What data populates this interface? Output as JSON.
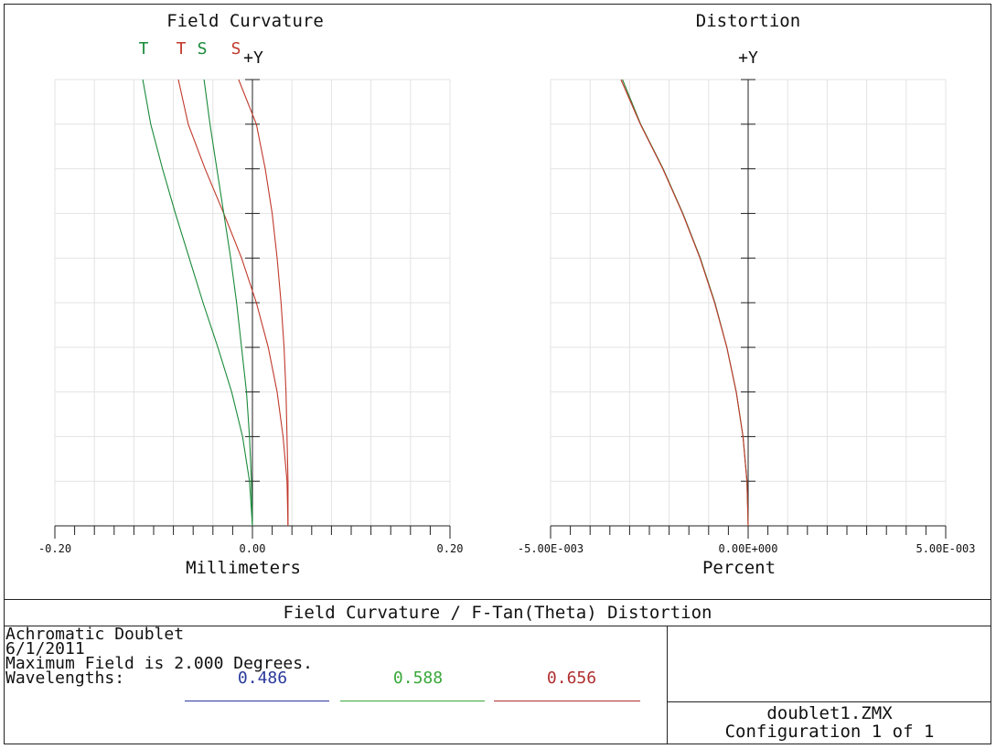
{
  "charts": {
    "field_curvature": {
      "title": "Field Curvature",
      "axis_label_y": "+Y",
      "xlabel": "Millimeters",
      "ticks": [
        "-0.20",
        "0.00",
        "0.20"
      ],
      "legend": [
        {
          "label": "T",
          "color": "#1a8a3a"
        },
        {
          "label": "T",
          "color": "#c0392b"
        },
        {
          "label": "S",
          "color": "#1a8a3a"
        },
        {
          "label": "S",
          "color": "#c0392b"
        }
      ]
    },
    "distortion": {
      "title": "Distortion",
      "axis_label_y": "+Y",
      "xlabel": "Percent",
      "ticks": [
        "-5.00E-003",
        "0.00E+000",
        "5.00E-003"
      ]
    }
  },
  "chart_data": [
    {
      "type": "line",
      "title": "Field Curvature",
      "xlabel": "Millimeters",
      "ylabel": "+Y",
      "xlim": [
        -0.2,
        0.2
      ],
      "ylim": [
        0,
        1
      ],
      "grid": true,
      "y": [
        0,
        0.1,
        0.2,
        0.3,
        0.4,
        0.5,
        0.6,
        0.7,
        0.8,
        0.9,
        1.0
      ],
      "series": [
        {
          "name": "T",
          "color": "#1a8a3a",
          "x": [
            0.0,
            -0.003,
            -0.01,
            -0.021,
            -0.035,
            -0.05,
            -0.064,
            -0.078,
            -0.091,
            -0.103,
            -0.111
          ]
        },
        {
          "name": "T",
          "color": "#c0392b",
          "x": [
            0.036,
            0.035,
            0.031,
            0.025,
            0.016,
            0.004,
            -0.011,
            -0.029,
            -0.048,
            -0.065,
            -0.075
          ]
        },
        {
          "name": "S",
          "color": "#1a8a3a",
          "x": [
            0.0,
            -0.001,
            -0.003,
            -0.006,
            -0.011,
            -0.016,
            -0.022,
            -0.029,
            -0.036,
            -0.043,
            -0.049
          ]
        },
        {
          "name": "S",
          "color": "#c0392b",
          "x": [
            0.036,
            0.036,
            0.035,
            0.034,
            0.032,
            0.029,
            0.025,
            0.02,
            0.013,
            0.004,
            -0.014
          ]
        }
      ]
    },
    {
      "type": "line",
      "title": "Distortion",
      "xlabel": "Percent",
      "ylabel": "+Y",
      "xlim": [
        -0.005,
        0.005
      ],
      "ylim": [
        0,
        1
      ],
      "grid": true,
      "y": [
        0,
        0.1,
        0.2,
        0.3,
        0.4,
        0.5,
        0.6,
        0.7,
        0.8,
        0.9,
        1.0
      ],
      "series": [
        {
          "color": "#2e7d32",
          "x": [
            0.0,
            -3e-05,
            -0.00013,
            -0.0003,
            -0.00054,
            -0.00084,
            -0.00121,
            -0.00165,
            -0.00215,
            -0.00272,
            -0.00318
          ]
        },
        {
          "color": "#c0392b",
          "x": [
            0.0,
            -3e-05,
            -0.00013,
            -0.0003,
            -0.00054,
            -0.00085,
            -0.00122,
            -0.00166,
            -0.00216,
            -0.00273,
            -0.00322
          ]
        }
      ]
    }
  ],
  "footer": {
    "title": "Field Curvature / F-Tan(Theta) Distortion",
    "lines": [
      "Achromatic Doublet",
      "6/1/2011",
      "Maximum Field is 2.000 Degrees."
    ],
    "wavelengths_label": "Wavelengths:",
    "wavelengths": [
      {
        "value": "0.486",
        "color": "#2a3a9c"
      },
      {
        "value": "0.588",
        "color": "#3aa83a"
      },
      {
        "value": "0.656",
        "color": "#b03030"
      }
    ],
    "file": "doublet1.ZMX",
    "configuration": "Configuration 1 of 1"
  }
}
